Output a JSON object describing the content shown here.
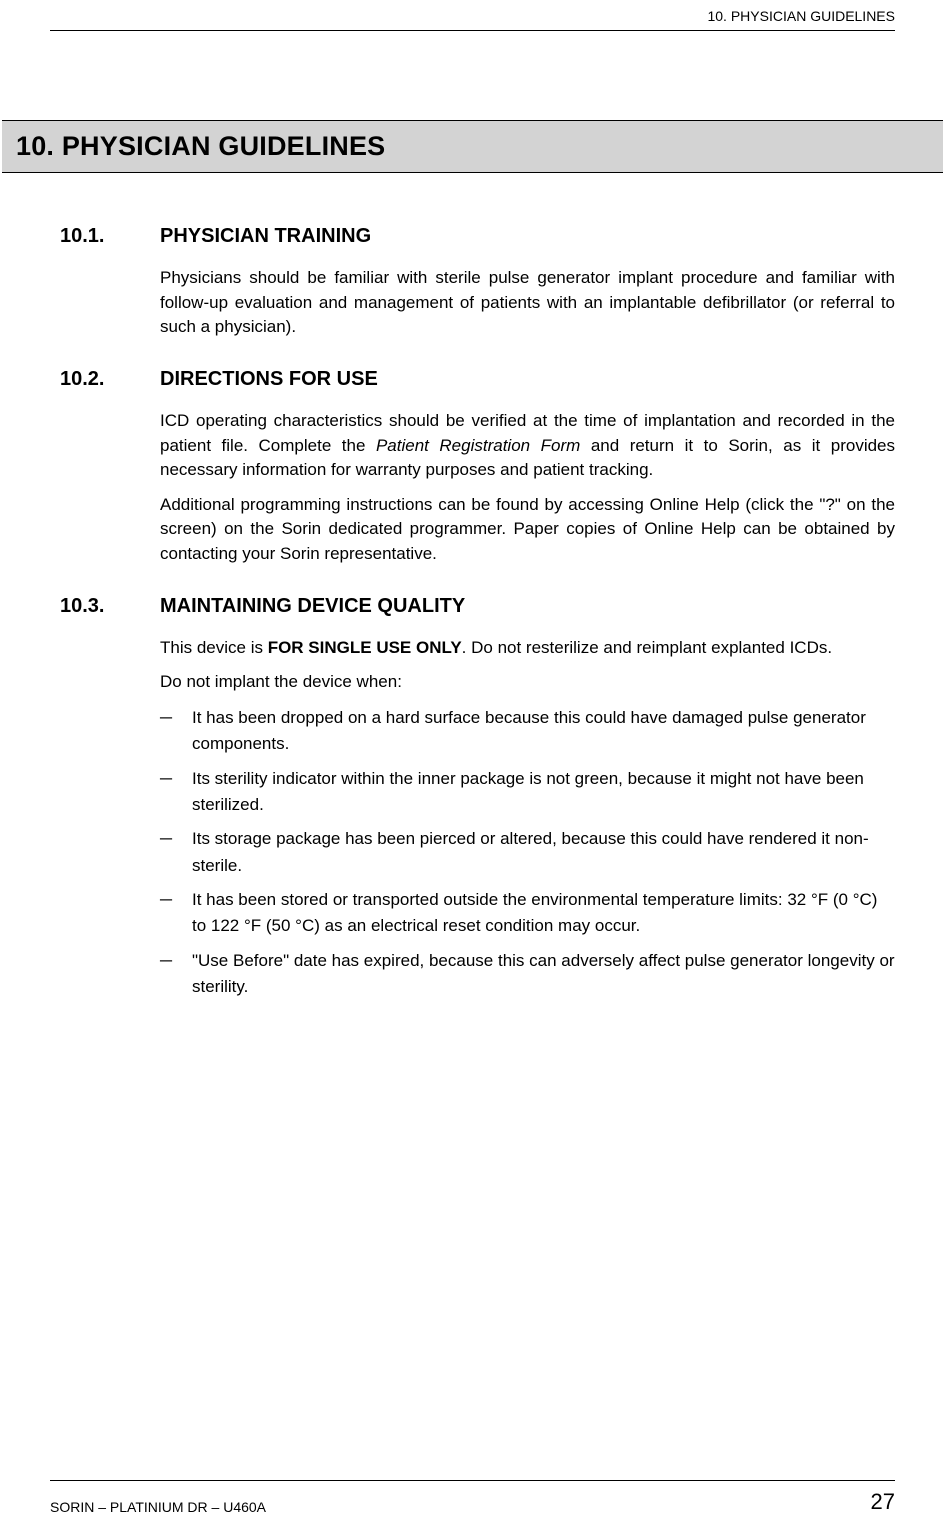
{
  "header": {
    "running": "10.  PHYSICIAN GUIDELINES"
  },
  "chapter": {
    "number": "10.",
    "title": "PHYSICIAN GUIDELINES"
  },
  "sections": [
    {
      "number": "10.1.",
      "title": "PHYSICIAN TRAINING",
      "paragraphs": [
        "Physicians should be familiar with sterile pulse generator implant procedure and familiar with follow-up evaluation and management of patients with an implantable defibrillator (or referral to such a physician)."
      ]
    },
    {
      "number": "10.2.",
      "title": "DIRECTIONS FOR USE",
      "para2_pre": "ICD operating characteristics should be verified at the time of implantation and recorded in the patient file. Complete the ",
      "para2_italic": "Patient Registration Form",
      "para2_post": " and return it to Sorin, as it provides necessary information for warranty purposes and patient tracking.",
      "para2b": "Additional programming instructions can be found by accessing Online Help (click the \"?\" on the screen) on the Sorin dedicated programmer. Paper copies of Online Help can be obtained by contacting your Sorin representative."
    },
    {
      "number": "10.3.",
      "title": "MAINTAINING DEVICE QUALITY",
      "para3_pre": "This device is ",
      "para3_bold": "FOR SINGLE USE ONLY",
      "para3_post": ". Do not resterilize and reimplant explanted ICDs.",
      "para3b": "Do not implant the device when:",
      "bullets": [
        "It has been dropped on a hard surface because this could have damaged pulse generator components.",
        "Its sterility indicator within the inner package is not green, because it might not have been sterilized.",
        "Its storage package has been pierced or altered, because this could have rendered it non-sterile.",
        "It has been stored or transported outside the environmental temperature limits: 32 °F (0 °C) to 122 °F (50 °C) as an electrical reset condition may occur.",
        "\"Use Before\" date has expired, because this can adversely affect pulse generator longevity or sterility."
      ]
    }
  ],
  "footer": {
    "left": "SORIN – PLATINIUM DR – U460A",
    "page": "27"
  }
}
